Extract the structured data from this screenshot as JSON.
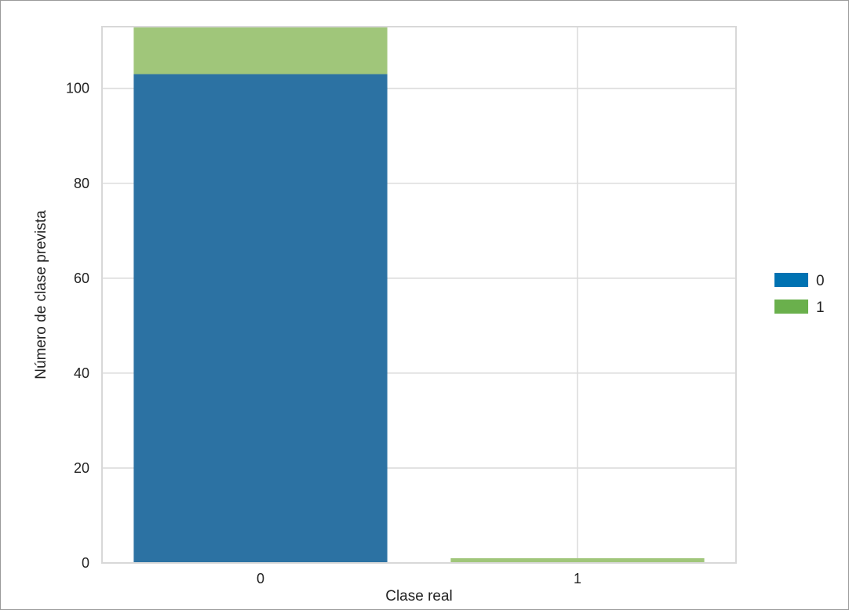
{
  "chart_data": {
    "type": "bar",
    "stacked": true,
    "title": "",
    "xlabel": "Clase real",
    "ylabel": "Número de clase prevista",
    "categories": [
      "0",
      "1"
    ],
    "series": [
      {
        "name": "0",
        "values": [
          103,
          0
        ],
        "color": "#2c72a3",
        "legend_color": "#0072b2"
      },
      {
        "name": "1",
        "values": [
          10,
          1
        ],
        "color": "#a0c67a",
        "legend_color": "#6ab04c"
      }
    ],
    "ylim": [
      0,
      113
    ],
    "yticks": [
      0,
      20,
      40,
      60,
      80,
      100
    ],
    "grid": true,
    "legend_position": "right"
  }
}
